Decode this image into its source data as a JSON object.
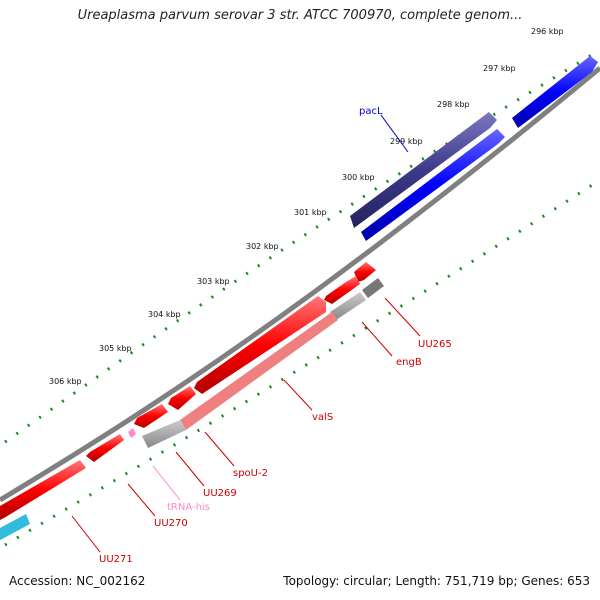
{
  "title": "Ureaplasma parvum serovar 3 str. ATCC 700970, complete genom...",
  "accession": "Accession: NC_002162",
  "summary": "Topology: circular; Length: 751,719 bp; Genes: 653",
  "colors": {
    "forward_cds": "#0000ff",
    "forward_cds_dark": "#3d3a8a",
    "reverse_cds": "#ff0000",
    "reverse_cds_light": "#f08080",
    "trna": "#ff88cc",
    "backbone": "#808080",
    "ticks": "#1a8a1a",
    "grey_gene": "#aaaaaa",
    "cyan_gene": "#33bbdd"
  },
  "ticks": [
    "296 kbp",
    "297 kbp",
    "298 kbp",
    "299 kbp",
    "300 kbp",
    "301 kbp",
    "302 kbp",
    "303 kbp",
    "304 kbp",
    "305 kbp",
    "306 kbp"
  ],
  "genes": [
    {
      "name": "pacL",
      "color": "#0000cc"
    },
    {
      "name": "UU265",
      "color": "#cc0000"
    },
    {
      "name": "engB",
      "color": "#cc0000"
    },
    {
      "name": "valS",
      "color": "#cc0000"
    },
    {
      "name": "spoU-2",
      "color": "#cc0000"
    },
    {
      "name": "UU269",
      "color": "#cc0000"
    },
    {
      "name": "tRNA-his",
      "color": "#ff88cc"
    },
    {
      "name": "UU270",
      "color": "#cc0000"
    },
    {
      "name": "UU271",
      "color": "#cc0000"
    }
  ]
}
